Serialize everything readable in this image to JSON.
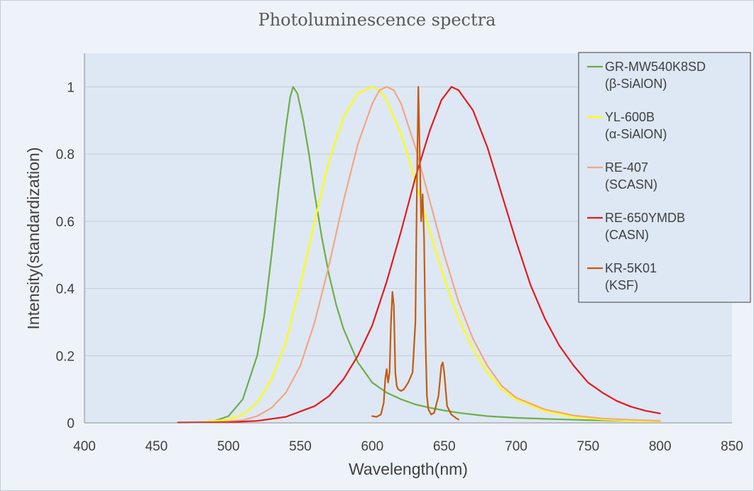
{
  "chart_data": {
    "type": "line",
    "title": "Photoluminescence spectra",
    "xlabel": "Wavelength(nm)",
    "ylabel": "Intensity(standardization)",
    "xlim": [
      400,
      850
    ],
    "ylim": [
      0,
      1.1
    ],
    "x_ticks": [
      "400",
      "450",
      "500",
      "550",
      "600",
      "650",
      "700",
      "750",
      "800",
      "850"
    ],
    "y_ticks": [
      "0",
      "0.2",
      "0.4",
      "0.6",
      "0.8",
      "1"
    ],
    "grid": "horizontal",
    "legend_position": "top-right",
    "series": [
      {
        "name": "GR-MW540K8SD",
        "name2": "(β-SiAlON)",
        "color": "#70ad47",
        "points": [
          [
            465,
            0.001
          ],
          [
            480,
            0.002
          ],
          [
            490,
            0.005
          ],
          [
            500,
            0.02
          ],
          [
            510,
            0.07
          ],
          [
            520,
            0.2
          ],
          [
            525,
            0.32
          ],
          [
            530,
            0.5
          ],
          [
            535,
            0.7
          ],
          [
            540,
            0.88
          ],
          [
            543,
            0.97
          ],
          [
            545,
            1.0
          ],
          [
            548,
            0.98
          ],
          [
            552,
            0.9
          ],
          [
            556,
            0.8
          ],
          [
            560,
            0.68
          ],
          [
            565,
            0.55
          ],
          [
            570,
            0.44
          ],
          [
            575,
            0.35
          ],
          [
            580,
            0.28
          ],
          [
            590,
            0.18
          ],
          [
            600,
            0.12
          ],
          [
            610,
            0.09
          ],
          [
            620,
            0.07
          ],
          [
            630,
            0.055
          ],
          [
            640,
            0.045
          ],
          [
            650,
            0.037
          ],
          [
            660,
            0.03
          ],
          [
            680,
            0.02
          ],
          [
            700,
            0.015
          ],
          [
            720,
            0.012
          ],
          [
            750,
            0.008
          ],
          [
            780,
            0.006
          ],
          [
            800,
            0.005
          ]
        ]
      },
      {
        "name": "YL-600B",
        "name2": "(α-SiAlON)",
        "color": "#ffff00",
        "points": [
          [
            465,
            0.001
          ],
          [
            480,
            0.002
          ],
          [
            500,
            0.01
          ],
          [
            510,
            0.025
          ],
          [
            520,
            0.06
          ],
          [
            530,
            0.13
          ],
          [
            540,
            0.24
          ],
          [
            550,
            0.41
          ],
          [
            560,
            0.6
          ],
          [
            570,
            0.78
          ],
          [
            580,
            0.91
          ],
          [
            590,
            0.98
          ],
          [
            600,
            1.0
          ],
          [
            605,
            0.99
          ],
          [
            610,
            0.96
          ],
          [
            620,
            0.86
          ],
          [
            630,
            0.72
          ],
          [
            640,
            0.57
          ],
          [
            650,
            0.43
          ],
          [
            660,
            0.31
          ],
          [
            670,
            0.22
          ],
          [
            680,
            0.15
          ],
          [
            690,
            0.1
          ],
          [
            700,
            0.07
          ],
          [
            720,
            0.035
          ],
          [
            740,
            0.018
          ],
          [
            760,
            0.01
          ],
          [
            780,
            0.006
          ],
          [
            800,
            0.004
          ]
        ]
      },
      {
        "name": "RE-407",
        "name2": "(SCASN)",
        "color": "#f4a582",
        "points": [
          [
            465,
            0.001
          ],
          [
            490,
            0.002
          ],
          [
            510,
            0.008
          ],
          [
            520,
            0.02
          ],
          [
            530,
            0.045
          ],
          [
            540,
            0.09
          ],
          [
            550,
            0.17
          ],
          [
            560,
            0.3
          ],
          [
            570,
            0.47
          ],
          [
            580,
            0.66
          ],
          [
            590,
            0.83
          ],
          [
            600,
            0.95
          ],
          [
            605,
            0.99
          ],
          [
            610,
            1.0
          ],
          [
            615,
            0.99
          ],
          [
            620,
            0.95
          ],
          [
            630,
            0.82
          ],
          [
            640,
            0.66
          ],
          [
            650,
            0.5
          ],
          [
            660,
            0.36
          ],
          [
            670,
            0.25
          ],
          [
            680,
            0.17
          ],
          [
            690,
            0.11
          ],
          [
            700,
            0.075
          ],
          [
            720,
            0.04
          ],
          [
            740,
            0.022
          ],
          [
            760,
            0.013
          ],
          [
            780,
            0.009
          ],
          [
            800,
            0.006
          ]
        ]
      },
      {
        "name": "RE-650YMDB",
        "name2": "(CASN)",
        "color": "#e31a1c",
        "points": [
          [
            465,
            0.001
          ],
          [
            500,
            0.002
          ],
          [
            520,
            0.006
          ],
          [
            540,
            0.018
          ],
          [
            560,
            0.05
          ],
          [
            570,
            0.08
          ],
          [
            580,
            0.13
          ],
          [
            590,
            0.2
          ],
          [
            600,
            0.29
          ],
          [
            610,
            0.42
          ],
          [
            620,
            0.57
          ],
          [
            630,
            0.73
          ],
          [
            640,
            0.87
          ],
          [
            648,
            0.96
          ],
          [
            655,
            1.0
          ],
          [
            660,
            0.99
          ],
          [
            670,
            0.93
          ],
          [
            680,
            0.82
          ],
          [
            690,
            0.68
          ],
          [
            700,
            0.54
          ],
          [
            710,
            0.41
          ],
          [
            720,
            0.31
          ],
          [
            730,
            0.23
          ],
          [
            740,
            0.17
          ],
          [
            750,
            0.12
          ],
          [
            760,
            0.09
          ],
          [
            770,
            0.065
          ],
          [
            780,
            0.048
          ],
          [
            790,
            0.036
          ],
          [
            800,
            0.028
          ]
        ]
      },
      {
        "name": "KR-5K01",
        "name2": "(KSF)",
        "color": "#c55a11",
        "points": [
          [
            600,
            0.02
          ],
          [
            603,
            0.018
          ],
          [
            606,
            0.025
          ],
          [
            608,
            0.06
          ],
          [
            609,
            0.13
          ],
          [
            610,
            0.16
          ],
          [
            611,
            0.12
          ],
          [
            612,
            0.15
          ],
          [
            613,
            0.3
          ],
          [
            614,
            0.39
          ],
          [
            615,
            0.35
          ],
          [
            616,
            0.15
          ],
          [
            617,
            0.11
          ],
          [
            618,
            0.1
          ],
          [
            620,
            0.095
          ],
          [
            622,
            0.1
          ],
          [
            625,
            0.12
          ],
          [
            628,
            0.15
          ],
          [
            630,
            0.3
          ],
          [
            631,
            0.7
          ],
          [
            632,
            1.0
          ],
          [
            633,
            0.8
          ],
          [
            634,
            0.6
          ],
          [
            635,
            0.68
          ],
          [
            636,
            0.55
          ],
          [
            637,
            0.25
          ],
          [
            638,
            0.08
          ],
          [
            639,
            0.04
          ],
          [
            641,
            0.025
          ],
          [
            643,
            0.03
          ],
          [
            646,
            0.08
          ],
          [
            648,
            0.17
          ],
          [
            649,
            0.18
          ],
          [
            650,
            0.15
          ],
          [
            652,
            0.05
          ],
          [
            655,
            0.025
          ],
          [
            658,
            0.015
          ],
          [
            660,
            0.01
          ]
        ]
      }
    ]
  }
}
